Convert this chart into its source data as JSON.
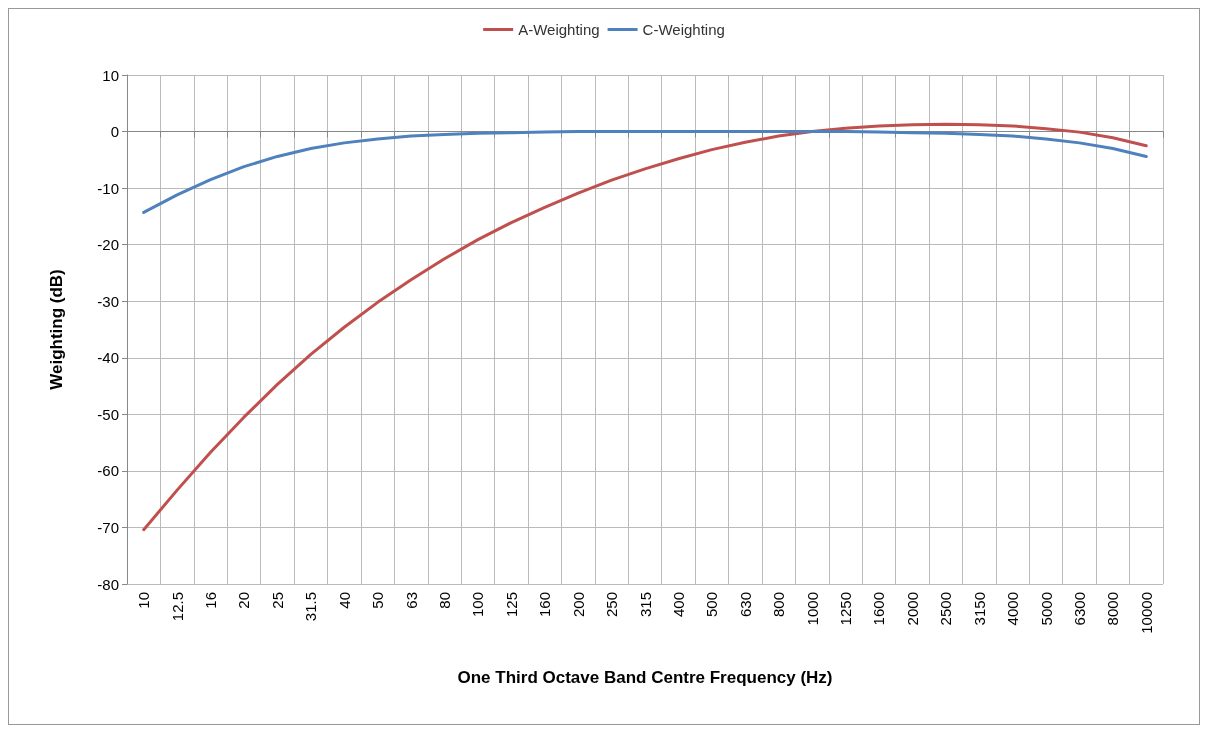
{
  "chart_data": {
    "type": "line",
    "xlabel": "One Third Octave Band Centre Frequency (Hz)",
    "ylabel": "Weighting (dB)",
    "categories": [
      "10",
      "12.5",
      "16",
      "20",
      "25",
      "31.5",
      "40",
      "50",
      "63",
      "80",
      "100",
      "125",
      "160",
      "200",
      "250",
      "315",
      "400",
      "500",
      "630",
      "800",
      "1000",
      "1250",
      "1600",
      "2000",
      "2500",
      "3150",
      "4000",
      "5000",
      "6300",
      "8000",
      "10000"
    ],
    "series": [
      {
        "name": "A-Weighting",
        "color": "#c0504d",
        "values": [
          -70.4,
          -63.4,
          -56.7,
          -50.5,
          -44.7,
          -39.4,
          -34.6,
          -30.2,
          -26.2,
          -22.5,
          -19.1,
          -16.1,
          -13.4,
          -10.9,
          -8.6,
          -6.6,
          -4.8,
          -3.2,
          -1.9,
          -0.8,
          0,
          0.6,
          1.0,
          1.2,
          1.3,
          1.2,
          1.0,
          0.5,
          -0.1,
          -1.1,
          -2.5
        ]
      },
      {
        "name": "C-Weighting",
        "color": "#4f81bd",
        "values": [
          -14.3,
          -11.2,
          -8.5,
          -6.2,
          -4.4,
          -3.0,
          -2.0,
          -1.3,
          -0.8,
          -0.5,
          -0.3,
          -0.2,
          -0.1,
          0,
          0,
          0,
          0,
          0,
          0,
          0,
          0,
          0,
          -0.1,
          -0.2,
          -0.3,
          -0.5,
          -0.8,
          -1.3,
          -2.0,
          -3.0,
          -4.4
        ]
      }
    ],
    "ylim": [
      -80,
      10
    ],
    "yticks": [
      -80,
      -70,
      -60,
      -50,
      -40,
      -30,
      -20,
      -10,
      0,
      10
    ],
    "grid": true,
    "legend": "top",
    "marker": "none",
    "line_style": "solid"
  }
}
